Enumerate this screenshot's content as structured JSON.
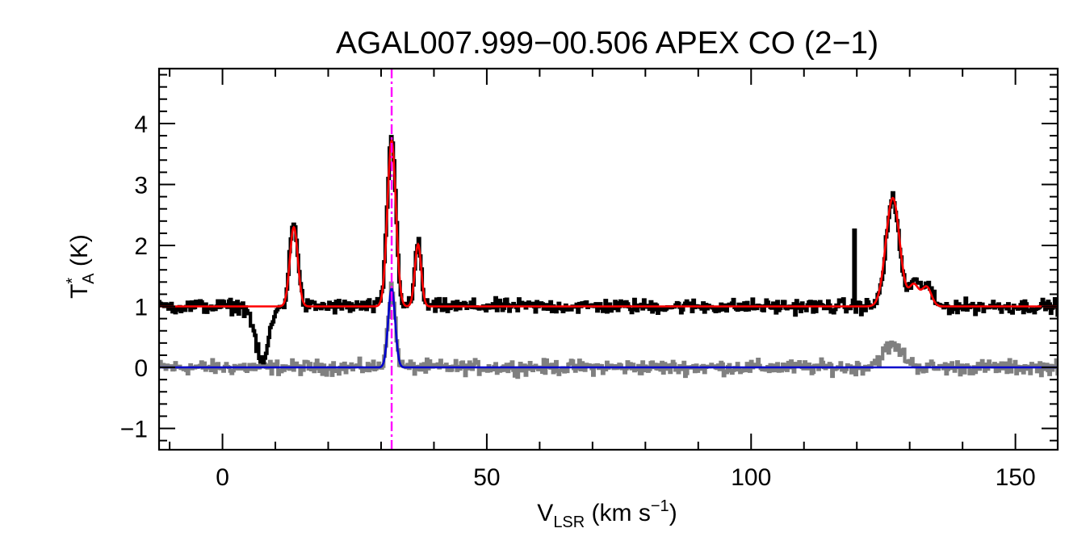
{
  "chart_data": {
    "type": "line",
    "title": "AGAL007.999−00.506  APEX CO (2−1)",
    "xlabel": {
      "main": "V",
      "sub": "LSR",
      "rest": " (km s",
      "sup": "−1",
      "end": ")"
    },
    "ylabel": {
      "main": "T",
      "sup": "*",
      "sub": "A",
      "rest": " (K)"
    },
    "xlim": [
      -12,
      158
    ],
    "ylim": [
      -1.35,
      4.9
    ],
    "x_ticks": [
      0,
      50,
      100,
      150
    ],
    "x_tick_labels": [
      "0",
      "50",
      "100",
      "150"
    ],
    "y_ticks": [
      -1,
      0,
      1,
      2,
      3,
      4
    ],
    "y_tick_labels": [
      "−1",
      "0",
      "1",
      "2",
      "3",
      "4"
    ],
    "x_minor_step": 10,
    "y_minor_step": 0.2,
    "grid": false,
    "marker_line": {
      "x": 32,
      "color": "#ff00ff",
      "style": "dash-dot"
    },
    "series": [
      {
        "kind": "spectrum",
        "color": "#000000",
        "baseline": 1.0,
        "noise": 0.08,
        "features": [
          {
            "center": 7.5,
            "amp": -0.92,
            "sigma": 1.25
          },
          {
            "center": 13.5,
            "amp": 1.42,
            "sigma": 0.75
          },
          {
            "center": 32.0,
            "amp": 2.8,
            "sigma": 0.8
          },
          {
            "center": 37.0,
            "amp": 1.05,
            "sigma": 0.6
          },
          {
            "center": 126.8,
            "amp": 1.75,
            "sigma": 1.25
          },
          {
            "center": 130.8,
            "amp": 0.4,
            "sigma": 0.9
          },
          {
            "center": 133.2,
            "amp": 0.38,
            "sigma": 0.9
          }
        ],
        "spikes": [
          {
            "x": 119.5,
            "value": 2.25
          }
        ]
      },
      {
        "kind": "fit",
        "color": "#ff0000",
        "baseline": 1.0,
        "features": [
          {
            "center": 13.5,
            "amp": 1.3,
            "sigma": 0.75
          },
          {
            "center": 32.0,
            "amp": 2.72,
            "sigma": 0.8
          },
          {
            "center": 37.0,
            "amp": 1.02,
            "sigma": 0.6
          },
          {
            "center": 126.8,
            "amp": 1.78,
            "sigma": 1.3
          },
          {
            "center": 130.8,
            "amp": 0.35,
            "sigma": 0.9
          },
          {
            "center": 133.2,
            "amp": 0.32,
            "sigma": 0.9
          }
        ]
      },
      {
        "kind": "residual",
        "color": "#808080",
        "baseline": 0.0,
        "noise": 0.08,
        "features": [
          {
            "center": 32.0,
            "amp": 1.28,
            "sigma": 0.7
          },
          {
            "center": 126.8,
            "amp": 0.35,
            "sigma": 2.0
          }
        ]
      },
      {
        "kind": "fit-component",
        "color": "#0000cc",
        "baseline": 0.0,
        "features": [
          {
            "center": 32.0,
            "amp": 1.3,
            "sigma": 0.65
          }
        ]
      }
    ]
  }
}
